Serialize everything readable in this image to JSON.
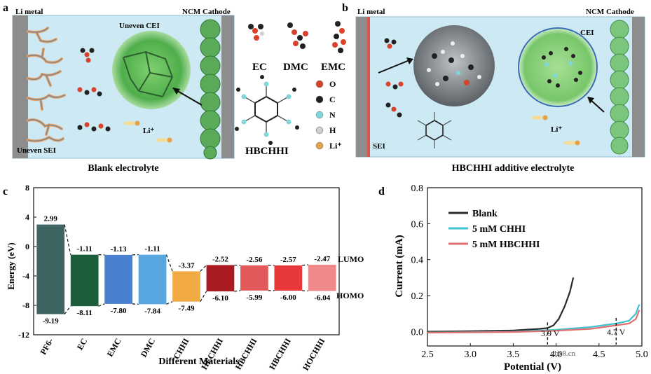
{
  "panel_a": {
    "letter": "a",
    "li_metal": "Li metal",
    "cathode": "NCM Cathode",
    "cei": "Uneven CEI",
    "sei": "Uneven SEI",
    "li_ion": "Li⁺",
    "caption": "Blank electrolyte"
  },
  "panel_b": {
    "letter": "b",
    "li_metal": "Li metal",
    "cathode": "NCM Cathode",
    "cei": "CEI",
    "sei": "SEI",
    "li_ion": "Li⁺",
    "caption": "HBCHHI additive electrolyte"
  },
  "molecules": {
    "ec": "EC",
    "dmc": "DMC",
    "emc": "EMC",
    "hbchhi": "HBCHHI",
    "legend": [
      {
        "label": "O",
        "color": "#d8412a"
      },
      {
        "label": "C",
        "color": "#222222"
      },
      {
        "label": "N",
        "color": "#7fd6dd"
      },
      {
        "label": "H",
        "color": "#cfcfcf"
      },
      {
        "label": "Li⁺",
        "color": "#e3a24a"
      }
    ]
  },
  "panel_c": {
    "letter": "c",
    "ylabel": "Energy (eV)",
    "xlabel": "Different Materials",
    "lumo": "LUMO",
    "homo": "HOMO"
  },
  "panel_d": {
    "letter": "d",
    "ylabel": "Current (mA)",
    "xlabel": "Potential (V)",
    "ann1": "3.9 V",
    "ann2": "4.7 V",
    "watermark": "ybx8.cn"
  },
  "chart_data": [
    {
      "type": "bar",
      "categories": [
        "PF6-",
        "EC",
        "EMC",
        "DMC",
        "CHHI",
        "HECHHI",
        "HBCHHI",
        "HBCHHI",
        "HOCHHI"
      ],
      "series": [
        {
          "name": "LUMO",
          "values": [
            2.99,
            -1.11,
            -1.13,
            -1.11,
            -3.37,
            -2.52,
            -2.56,
            -2.57,
            -2.47
          ]
        },
        {
          "name": "HOMO",
          "values": [
            -9.19,
            -8.11,
            -7.8,
            -7.84,
            -7.49,
            -6.1,
            -5.99,
            -6.0,
            -6.04
          ]
        }
      ],
      "lumo_labels": [
        "2.99",
        "-1.11",
        "-1.13",
        "-1.11",
        "-3.37",
        "-2.52",
        "-2.56",
        "-2.57",
        "-2.47"
      ],
      "homo_labels": [
        "-9.19",
        "-8.11",
        "-7.80",
        "-7.84",
        "-7.49",
        "-6.10",
        "-5.99",
        "-6.00",
        "-6.04"
      ],
      "colors": [
        "#3f6563",
        "#1d5e3a",
        "#4a7fcf",
        "#58a6e0",
        "#f2aa43",
        "#a91b20",
        "#e05a5a",
        "#e7383c",
        "#f08a8a"
      ],
      "xlabel": "Different Materials",
      "ylabel": "Energy (eV)",
      "ylim": [
        -12,
        8
      ],
      "yticks": [
        "-12",
        "-8",
        "-4",
        "0",
        "4",
        "8"
      ]
    },
    {
      "type": "line",
      "xlabel": "Potential (V)",
      "ylabel": "Current (mA)",
      "xlim": [
        2.5,
        5.0
      ],
      "ylim": [
        -0.08,
        0.8
      ],
      "xticks": [
        "2.5",
        "3.0",
        "3.5",
        "4.0",
        "4.5",
        "5.0"
      ],
      "yticks": [
        "0.0",
        "0.2",
        "0.4",
        "0.6",
        "0.8"
      ],
      "legend_position": "top-left",
      "series": [
        {
          "name": "Blank",
          "color": "#2a2a2a",
          "points": [
            [
              2.5,
              0.0
            ],
            [
              3.0,
              0.002
            ],
            [
              3.5,
              0.006
            ],
            [
              3.8,
              0.015
            ],
            [
              3.9,
              0.02
            ],
            [
              3.97,
              0.035
            ],
            [
              4.03,
              0.07
            ],
            [
              4.1,
              0.14
            ],
            [
              4.16,
              0.22
            ],
            [
              4.2,
              0.3
            ]
          ]
        },
        {
          "name": "5 mM CHHI",
          "color": "#3fc1cf",
          "points": [
            [
              2.5,
              -0.005
            ],
            [
              3.0,
              -0.003
            ],
            [
              3.5,
              0.0
            ],
            [
              4.0,
              0.01
            ],
            [
              4.4,
              0.025
            ],
            [
              4.7,
              0.045
            ],
            [
              4.85,
              0.06
            ],
            [
              4.93,
              0.1
            ],
            [
              4.97,
              0.15
            ]
          ]
        },
        {
          "name": "5 mM HBCHHI",
          "color": "#e07070",
          "points": [
            [
              2.5,
              -0.006
            ],
            [
              3.0,
              -0.004
            ],
            [
              3.5,
              -0.002
            ],
            [
              4.0,
              0.005
            ],
            [
              4.4,
              0.015
            ],
            [
              4.7,
              0.035
            ],
            [
              4.85,
              0.045
            ],
            [
              4.93,
              0.07
            ],
            [
              4.97,
              0.12
            ]
          ]
        }
      ]
    }
  ]
}
